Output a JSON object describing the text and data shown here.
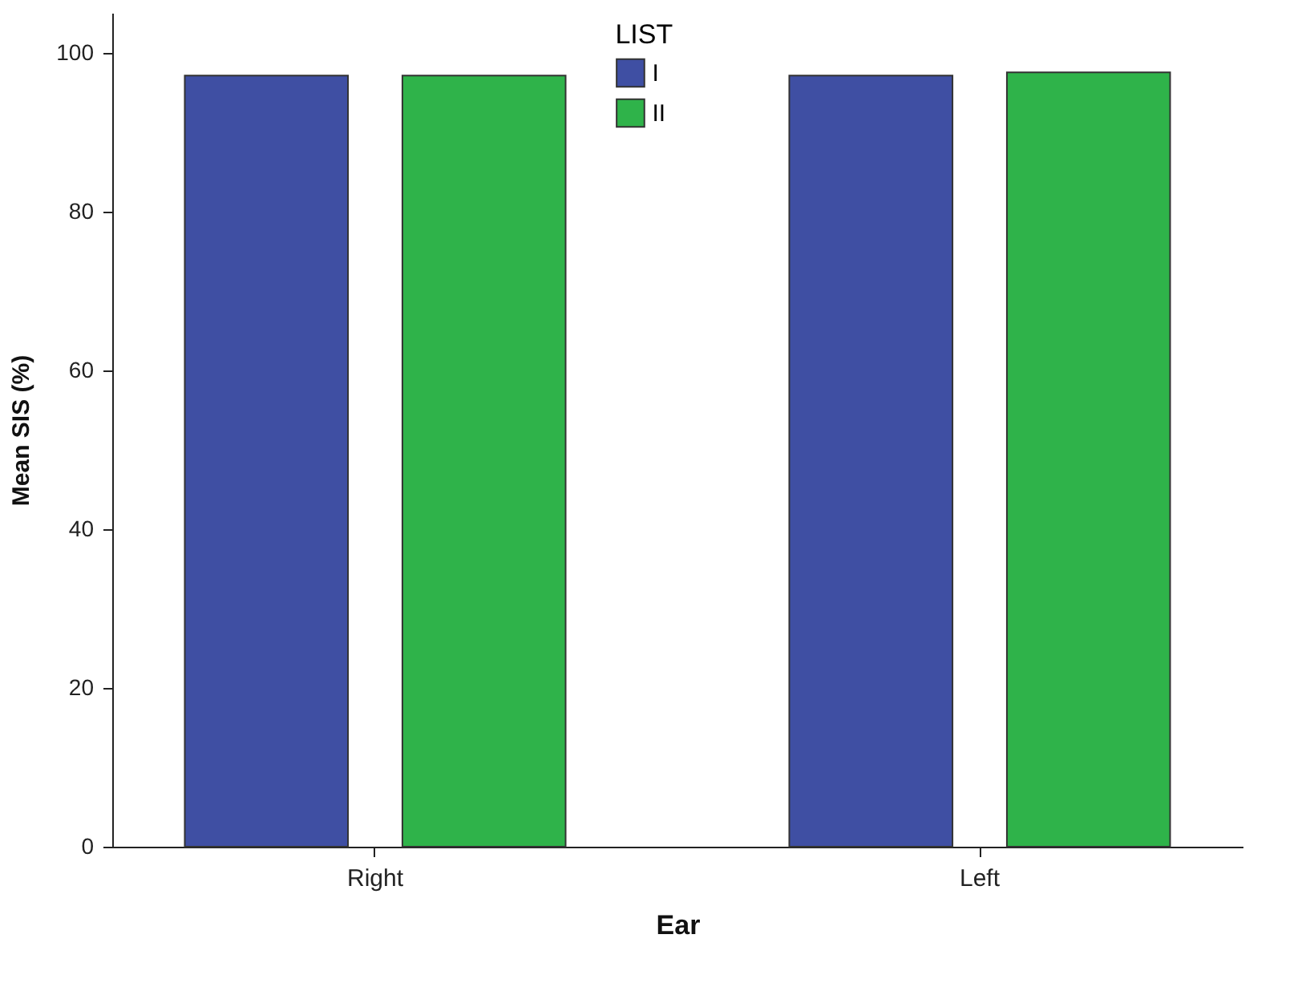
{
  "chart_data": {
    "type": "bar",
    "xlabel": "Ear",
    "ylabel": "Mean SIS (%)",
    "legend_title": "LIST",
    "categories": [
      "Right",
      "Left"
    ],
    "series": [
      {
        "name": "I",
        "color": "#3f4fa3",
        "values": [
          97.1,
          97.1
        ]
      },
      {
        "name": "II",
        "color": "#2fb34a",
        "values": [
          97.1,
          97.5
        ]
      }
    ],
    "ylim": [
      0,
      105
    ],
    "yticks": [
      0,
      20,
      40,
      60,
      80,
      100
    ],
    "grid": false,
    "legend": "top"
  }
}
